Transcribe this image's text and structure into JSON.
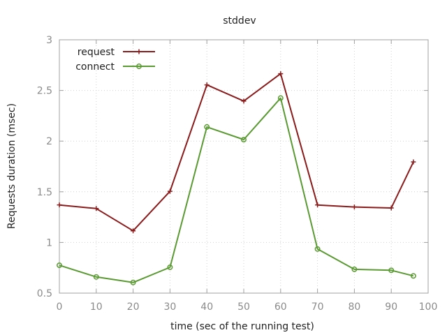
{
  "chart_data": {
    "type": "line",
    "title": "stddev",
    "xlabel": "time (sec of the running test)",
    "ylabel": "Requests duration (msec)",
    "xlim": [
      0,
      100
    ],
    "ylim": [
      0.5,
      3
    ],
    "xticks": [
      0,
      10,
      20,
      30,
      40,
      50,
      60,
      70,
      80,
      90,
      100
    ],
    "yticks": [
      0.5,
      1,
      1.5,
      2,
      2.5,
      3
    ],
    "xtick_labels": [
      "0",
      "10",
      "20",
      "30",
      "40",
      "50",
      "60",
      "70",
      "80",
      "90",
      "100"
    ],
    "ytick_labels": [
      "0.5",
      "1",
      "1.5",
      "2",
      "2.5",
      "3"
    ],
    "grid": true,
    "legend_position": "top-left",
    "series": [
      {
        "name": "request",
        "color": "#8b1a1a",
        "marker": "plus",
        "x": [
          0,
          10,
          20,
          30,
          40,
          50,
          60,
          70,
          80,
          90,
          96
        ],
        "y": [
          1.37,
          1.335,
          1.115,
          1.505,
          2.555,
          2.395,
          2.665,
          1.37,
          1.35,
          1.34,
          1.795
        ]
      },
      {
        "name": "connect",
        "color": "#5a9a32",
        "marker": "circle",
        "x": [
          0,
          10,
          20,
          30,
          40,
          50,
          60,
          70,
          80,
          90,
          96
        ],
        "y": [
          0.775,
          0.66,
          0.605,
          0.755,
          2.14,
          2.015,
          2.425,
          0.935,
          0.735,
          0.725,
          0.67
        ]
      }
    ]
  }
}
